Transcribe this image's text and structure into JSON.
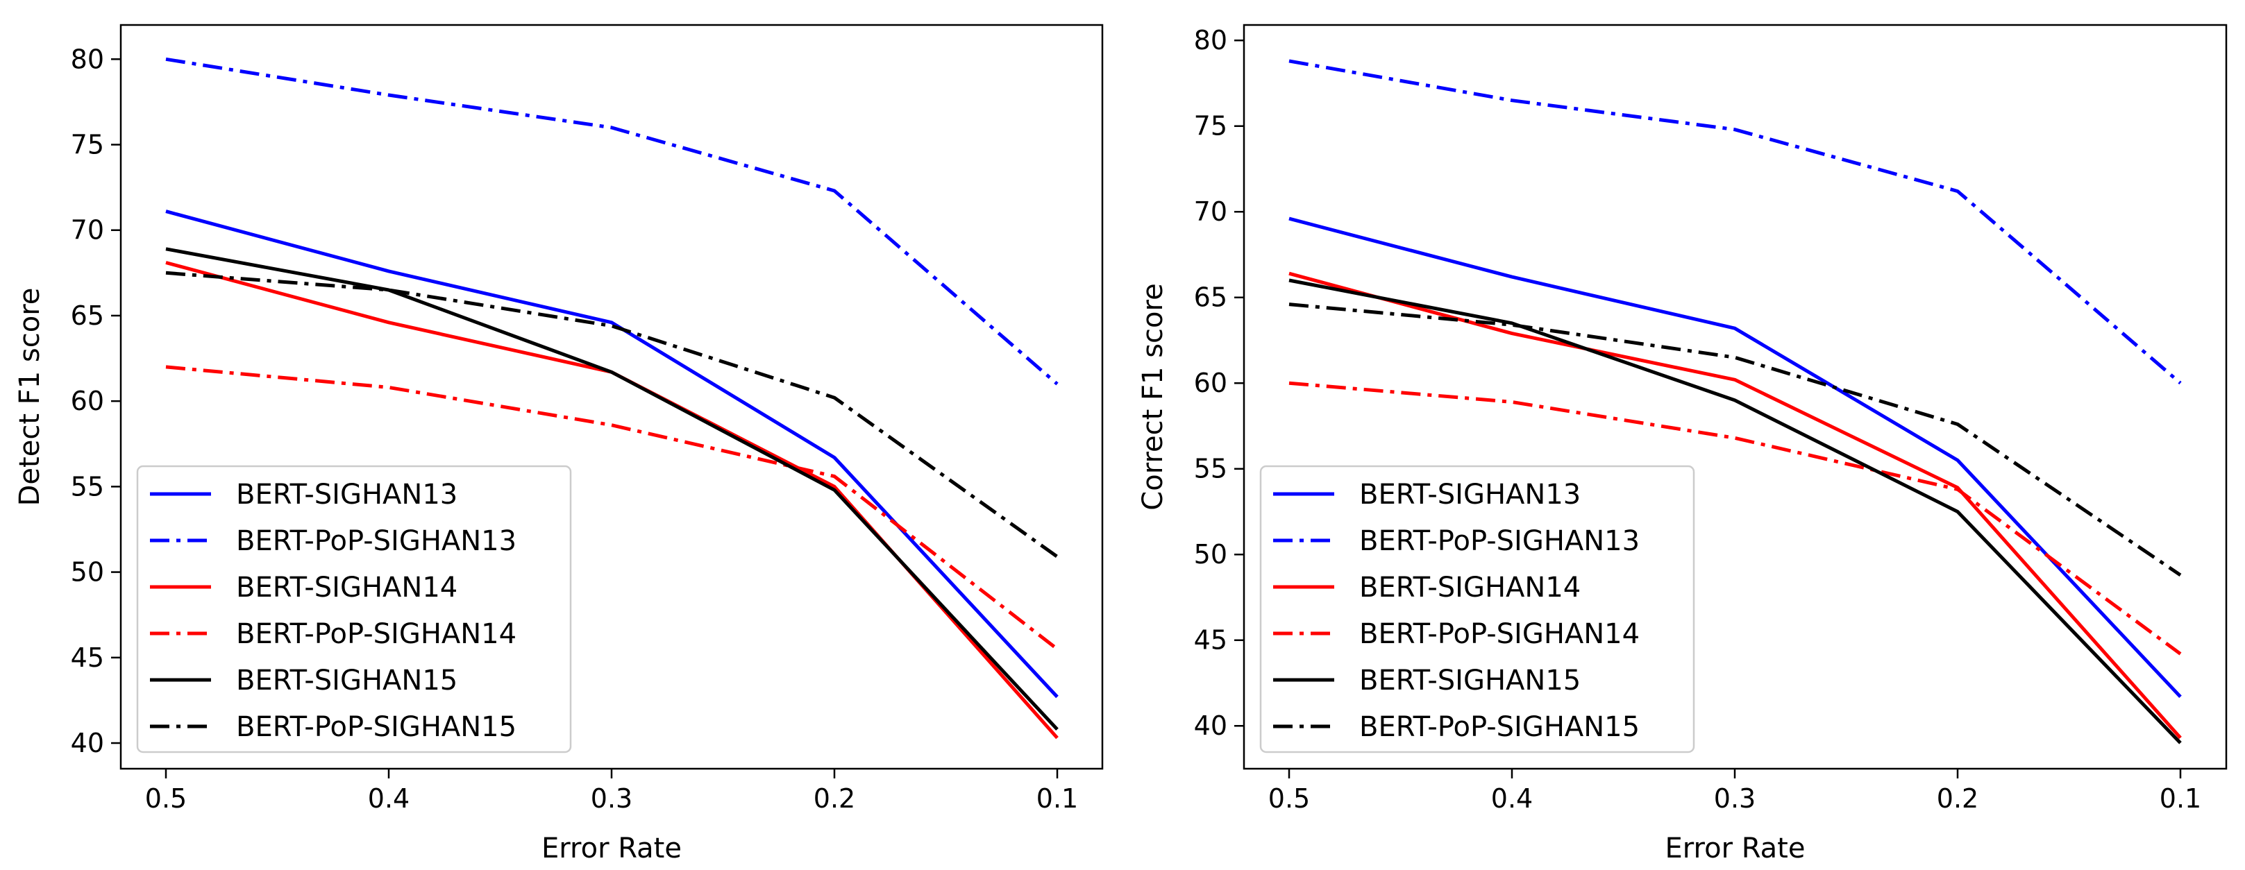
{
  "chart_data": [
    {
      "type": "line",
      "xlabel": "Error Rate",
      "ylabel": "Detect F1 score",
      "x": [
        0.5,
        0.4,
        0.3,
        0.2,
        0.1
      ],
      "x_tick_labels": [
        "0.5",
        "0.4",
        "0.3",
        "0.2",
        "0.1"
      ],
      "y_ticks": [
        40,
        45,
        50,
        55,
        60,
        65,
        70,
        75,
        80
      ],
      "ylim": [
        38.5,
        82
      ],
      "grid": false,
      "legend_position": "lower-left",
      "series": [
        {
          "name": "BERT-SIGHAN13",
          "color": "#0000ff",
          "style": "solid",
          "values": [
            71.1,
            67.6,
            64.6,
            56.7,
            42.7
          ]
        },
        {
          "name": "BERT-PoP-SIGHAN13",
          "color": "#0000ff",
          "style": "dashdot",
          "values": [
            80.0,
            77.9,
            76.0,
            72.3,
            61.0
          ]
        },
        {
          "name": "BERT-SIGHAN14",
          "color": "#ff0000",
          "style": "solid",
          "values": [
            68.1,
            64.6,
            61.7,
            55.0,
            40.3
          ]
        },
        {
          "name": "BERT-PoP-SIGHAN14",
          "color": "#ff0000",
          "style": "dashdot",
          "values": [
            62.0,
            60.8,
            58.6,
            55.6,
            45.5
          ]
        },
        {
          "name": "BERT-SIGHAN15",
          "color": "#000000",
          "style": "solid",
          "values": [
            68.9,
            66.5,
            61.7,
            54.8,
            40.8
          ]
        },
        {
          "name": "BERT-PoP-SIGHAN15",
          "color": "#000000",
          "style": "dashdot",
          "values": [
            67.5,
            66.5,
            64.4,
            60.2,
            50.9
          ]
        }
      ]
    },
    {
      "type": "line",
      "xlabel": "Error Rate",
      "ylabel": "Correct F1 score",
      "x": [
        0.5,
        0.4,
        0.3,
        0.2,
        0.1
      ],
      "x_tick_labels": [
        "0.5",
        "0.4",
        "0.3",
        "0.2",
        "0.1"
      ],
      "y_ticks": [
        40,
        45,
        50,
        55,
        60,
        65,
        70,
        75,
        80
      ],
      "ylim": [
        37.5,
        80.9
      ],
      "grid": false,
      "legend_position": "lower-left",
      "series": [
        {
          "name": "BERT-SIGHAN13",
          "color": "#0000ff",
          "style": "solid",
          "values": [
            69.6,
            66.2,
            63.2,
            55.5,
            41.7
          ]
        },
        {
          "name": "BERT-PoP-SIGHAN13",
          "color": "#0000ff",
          "style": "dashdot",
          "values": [
            78.8,
            76.5,
            74.8,
            71.2,
            60.0
          ]
        },
        {
          "name": "BERT-SIGHAN14",
          "color": "#ff0000",
          "style": "solid",
          "values": [
            66.4,
            62.9,
            60.2,
            53.9,
            39.3
          ]
        },
        {
          "name": "BERT-PoP-SIGHAN14",
          "color": "#ff0000",
          "style": "dashdot",
          "values": [
            60.0,
            58.9,
            56.8,
            53.8,
            44.2
          ]
        },
        {
          "name": "BERT-SIGHAN15",
          "color": "#000000",
          "style": "solid",
          "values": [
            66.0,
            63.5,
            59.0,
            52.5,
            39.0
          ]
        },
        {
          "name": "BERT-PoP-SIGHAN15",
          "color": "#000000",
          "style": "dashdot",
          "values": [
            64.6,
            63.4,
            61.5,
            57.6,
            48.8
          ]
        }
      ]
    }
  ]
}
